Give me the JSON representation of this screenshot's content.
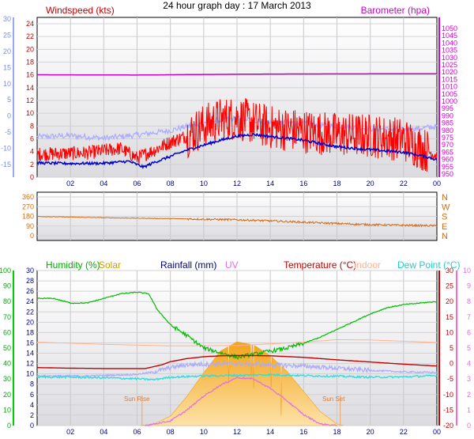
{
  "title": "24 hour graph day : 17 March 2013",
  "x_ticks": [
    "02",
    "04",
    "06",
    "08",
    "10",
    "12",
    "14",
    "16",
    "18",
    "20",
    "22",
    "00"
  ],
  "colors": {
    "panel_bg": "#e9e9ec",
    "frame": "#000000",
    "wind": "#ff0000",
    "temperature_axis_wind": "#0000cc",
    "temperature_outdoor": "#c00000",
    "dewpoint": "#33dddd",
    "indoor": "#ffb28c",
    "humidity": "#00bb00",
    "solar": "#f5b12a",
    "uv": "#e070e0",
    "rain": "#000080",
    "baro": "#cc00cc",
    "gust": "#aaaaff",
    "wdir": "#d36b10"
  },
  "chart_data": [
    {
      "type": "line",
      "name": "wind-baro",
      "title": "",
      "left_axis_label": "Windspeed (kts)",
      "right_axis_label": "Barometer (hpa)",
      "left_ticks": [
        "24",
        "22",
        "20",
        "18",
        "16",
        "14",
        "12",
        "10",
        "8",
        "6",
        "4",
        "2",
        "0"
      ],
      "outer_left_ticks": [
        "30",
        "25",
        "20",
        "15",
        "10",
        "5",
        "0",
        "-5",
        "-10",
        "-15"
      ],
      "right_ticks": [
        "1050",
        "1045",
        "1040",
        "1035",
        "1030",
        "1025",
        "1020",
        "1015",
        "1010",
        "1005",
        "1000",
        "995",
        "990",
        "985",
        "980",
        "975",
        "970",
        "965",
        "960",
        "955",
        "950"
      ],
      "ylim_left": [
        0,
        24
      ],
      "ylim_right": [
        950,
        1050
      ],
      "ylim_outer_left": [
        -15,
        30
      ],
      "x_hours": [
        0,
        24
      ],
      "series": [
        {
          "key": "baro",
          "values": [
            [
              0,
              1018.2
            ],
            [
              6,
              1018.0
            ],
            [
              10,
              1018.4
            ],
            [
              14,
              1018.7
            ],
            [
              18,
              1018.8
            ],
            [
              24,
              1018.9
            ]
          ]
        },
        {
          "key": "gust",
          "values": [
            [
              0,
              6.3
            ],
            [
              2,
              6.5
            ],
            [
              4,
              6.1
            ],
            [
              6,
              6.6
            ],
            [
              8,
              7.3
            ],
            [
              10,
              8.6
            ],
            [
              12,
              9.2
            ],
            [
              14,
              8.6
            ],
            [
              16,
              8.4
            ],
            [
              18,
              8.0
            ],
            [
              20,
              7.6
            ],
            [
              22,
              7.4
            ],
            [
              24,
              7.9
            ]
          ]
        },
        {
          "key": "wind",
          "values": [
            [
              0,
              3.6
            ],
            [
              3,
              3.8
            ],
            [
              5,
              4.5
            ],
            [
              6,
              3.0
            ],
            [
              7,
              4.2
            ],
            [
              8,
              5.5
            ],
            [
              9,
              6.5
            ],
            [
              10,
              8.0
            ],
            [
              11,
              9.0
            ],
            [
              12,
              9.3
            ],
            [
              13,
              8.5
            ],
            [
              14,
              7.8
            ],
            [
              16,
              7.2
            ],
            [
              18,
              6.7
            ],
            [
              20,
              6.5
            ],
            [
              22,
              5.9
            ],
            [
              23.5,
              4.0
            ],
            [
              24,
              3.4
            ]
          ]
        },
        {
          "key": "temp",
          "values": [
            [
              0,
              -14.5
            ],
            [
              2,
              -14.7
            ],
            [
              4,
              -14.6
            ],
            [
              5.5,
              -14.0
            ],
            [
              6.4,
              -15.8
            ],
            [
              7,
              -14.4
            ],
            [
              8,
              -12.5
            ],
            [
              9,
              -10.5
            ],
            [
              10,
              -9.0
            ],
            [
              11,
              -7.5
            ],
            [
              12,
              -6.2
            ],
            [
              13,
              -5.7
            ],
            [
              14,
              -6.3
            ],
            [
              16,
              -7.5
            ],
            [
              18,
              -9.5
            ],
            [
              20,
              -10.4
            ],
            [
              22,
              -11.2
            ],
            [
              23.3,
              -12.5
            ],
            [
              24,
              -13.5
            ]
          ]
        }
      ]
    },
    {
      "type": "line",
      "name": "wind-direction",
      "title": "",
      "left_ticks": [
        "360",
        "270",
        "180",
        "90",
        "0"
      ],
      "right_ticks": [
        "N",
        "W",
        "S",
        "E",
        "N"
      ],
      "ylim": [
        0,
        360
      ],
      "x_hours": [
        0,
        24
      ],
      "series": [
        {
          "key": "wdir",
          "values": [
            [
              0,
              179
            ],
            [
              4,
              167
            ],
            [
              8,
              159
            ],
            [
              10,
              153
            ],
            [
              12,
              148
            ],
            [
              14,
              138
            ],
            [
              16,
              125
            ],
            [
              18,
              113
            ],
            [
              20,
              103
            ],
            [
              22,
              97
            ],
            [
              24,
              92
            ]
          ]
        }
      ]
    },
    {
      "type": "line",
      "name": "thermal-panel",
      "title": "",
      "legend": [
        "Humidity (%)",
        "Solar",
        "Rainfall (mm)",
        "UV",
        "Temperature (°C)",
        "Indoor",
        "Dew Point (°C)"
      ],
      "humidity_ticks": [
        "100",
        "90",
        "80",
        "70",
        "60",
        "50",
        "40",
        "30",
        "20",
        "10",
        "0"
      ],
      "rain_ticks": [
        "30",
        "28",
        "26",
        "24",
        "22",
        "20",
        "18",
        "16",
        "14",
        "12",
        "10",
        "8",
        "6",
        "4",
        "2",
        "0"
      ],
      "temp_ticks": [
        "30",
        "25",
        "20",
        "15",
        "10",
        "5",
        "0",
        "-5",
        "-10",
        "-15",
        "-20"
      ],
      "uv_ticks": [
        "10",
        "9",
        "8",
        "7",
        "6",
        "5",
        "4",
        "3",
        "2",
        "1",
        "0"
      ],
      "ylim_humidity": [
        0,
        100
      ],
      "ylim_temperature": [
        -20,
        30
      ],
      "ylim_uv": [
        0,
        10
      ],
      "x_hours": [
        0,
        24
      ],
      "sun_rise": "Sun Rise",
      "sun_set": "Sun Set",
      "sun_rise_hour": 6.3,
      "sun_set_hour": 18.2,
      "series": [
        {
          "key": "humidity",
          "values": [
            [
              0,
              82
            ],
            [
              1,
              82
            ],
            [
              2,
              79
            ],
            [
              3,
              79
            ],
            [
              4,
              82
            ],
            [
              5,
              85
            ],
            [
              6,
              86
            ],
            [
              6.7,
              85
            ],
            [
              7.2,
              75
            ],
            [
              8,
              65
            ],
            [
              9,
              58
            ],
            [
              10,
              50
            ],
            [
              11,
              47
            ],
            [
              12,
              44
            ],
            [
              13,
              46
            ],
            [
              14,
              48
            ],
            [
              15,
              50
            ],
            [
              16,
              53
            ],
            [
              17,
              57
            ],
            [
              18,
              62
            ],
            [
              19,
              67
            ],
            [
              20,
              72
            ],
            [
              21,
              76
            ],
            [
              22,
              78
            ],
            [
              23,
              79
            ],
            [
              24,
              80
            ]
          ]
        },
        {
          "key": "temperature",
          "values": [
            [
              0,
              -1.3
            ],
            [
              2,
              -1.5
            ],
            [
              4,
              -1.6
            ],
            [
              6.5,
              -1.6
            ],
            [
              7.5,
              -0.4
            ],
            [
              8,
              0.6
            ],
            [
              9,
              1.6
            ],
            [
              10,
              2.2
            ],
            [
              11,
              2.5
            ],
            [
              12,
              2.6
            ],
            [
              14,
              2.5
            ],
            [
              16,
              2.0
            ],
            [
              18,
              1.2
            ],
            [
              20,
              0.5
            ],
            [
              22,
              -0.2
            ],
            [
              24,
              -0.8
            ]
          ]
        },
        {
          "key": "dewpoint",
          "values": [
            [
              0,
              -4.3
            ],
            [
              2,
              -4.4
            ],
            [
              4,
              -4.6
            ],
            [
              6,
              -4.9
            ],
            [
              7,
              -5.2
            ],
            [
              8,
              -4.4
            ],
            [
              10,
              -4.0
            ],
            [
              12,
              -3.8
            ],
            [
              14,
              -3.6
            ],
            [
              16,
              -3.9
            ],
            [
              18,
              -4.1
            ],
            [
              20,
              -4.4
            ],
            [
              22,
              -4.3
            ],
            [
              24,
              -3.9
            ]
          ]
        },
        {
          "key": "gust_low",
          "values": [
            [
              0,
              -4.0
            ],
            [
              3,
              -4.0
            ],
            [
              6,
              -3.5
            ],
            [
              7,
              -2.7
            ],
            [
              8,
              -1.3
            ],
            [
              9,
              -0.4
            ],
            [
              10,
              -0.2
            ],
            [
              11,
              -0.1
            ],
            [
              12,
              -0.1
            ],
            [
              14,
              -0.4
            ],
            [
              16,
              -0.8
            ],
            [
              18,
              -1.5
            ],
            [
              20,
              -2.2
            ],
            [
              22,
              -2.7
            ],
            [
              24,
              -2.9
            ]
          ]
        },
        {
          "key": "indoor",
          "values": [
            [
              0,
              6.9
            ],
            [
              4,
              6.2
            ],
            [
              8,
              5.7
            ],
            [
              12,
              5.8
            ],
            [
              16,
              6.9
            ],
            [
              18,
              7.7
            ],
            [
              20,
              7.6
            ],
            [
              24,
              6.8
            ]
          ]
        },
        {
          "key": "solar",
          "values": [
            [
              6.2,
              0
            ],
            [
              7,
              1
            ],
            [
              8,
              6
            ],
            [
              9,
              19
            ],
            [
              10,
              34
            ],
            [
              11,
              48
            ],
            [
              12,
              54
            ],
            [
              13,
              52
            ],
            [
              14,
              45
            ],
            [
              15,
              35
            ],
            [
              16,
              22
            ],
            [
              17,
              9
            ],
            [
              18,
              1
            ],
            [
              18.4,
              0
            ]
          ]
        },
        {
          "key": "uv",
          "values": [
            [
              6.5,
              0
            ],
            [
              8,
              0.3
            ],
            [
              9,
              1.0
            ],
            [
              10,
              1.9
            ],
            [
              11,
              2.6
            ],
            [
              12,
              3.1
            ],
            [
              13,
              3.0
            ],
            [
              14,
              2.4
            ],
            [
              15,
              1.6
            ],
            [
              16,
              0.7
            ],
            [
              17,
              0.1
            ],
            [
              18,
              0
            ]
          ]
        }
      ]
    }
  ]
}
